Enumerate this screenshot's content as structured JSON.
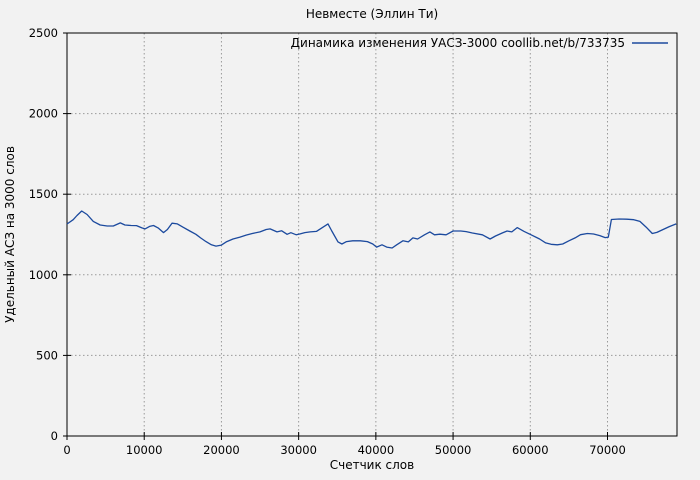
{
  "window": {
    "background": "#f2f2f2"
  },
  "chart_data": {
    "type": "line",
    "title": "Невместе (Эллин Ти)",
    "xlabel": "Счетчик слов",
    "ylabel": "Удельный АСЗ на 3000 слов",
    "legend_position": "top-right-inside",
    "grid": true,
    "xlim": [
      0,
      79000
    ],
    "ylim": [
      0,
      2500
    ],
    "xticks": [
      0,
      10000,
      20000,
      30000,
      40000,
      50000,
      60000,
      70000
    ],
    "yticks": [
      0,
      500,
      1000,
      1500,
      2000,
      2500
    ],
    "series": [
      {
        "name": "Динамика изменения УАСЗ-3000 coollib.net/b/733735",
        "color": "#1c4a9e",
        "points": [
          [
            0,
            1315
          ],
          [
            800,
            1342
          ],
          [
            1300,
            1368
          ],
          [
            1900,
            1396
          ],
          [
            2600,
            1374
          ],
          [
            3400,
            1331
          ],
          [
            4300,
            1309
          ],
          [
            5200,
            1303
          ],
          [
            6000,
            1303
          ],
          [
            6900,
            1322
          ],
          [
            7500,
            1309
          ],
          [
            8300,
            1306
          ],
          [
            9000,
            1305
          ],
          [
            9700,
            1291
          ],
          [
            10100,
            1285
          ],
          [
            10700,
            1300
          ],
          [
            11200,
            1306
          ],
          [
            11800,
            1291
          ],
          [
            12500,
            1262
          ],
          [
            13000,
            1281
          ],
          [
            13600,
            1320
          ],
          [
            14300,
            1316
          ],
          [
            15000,
            1296
          ],
          [
            15900,
            1272
          ],
          [
            16700,
            1251
          ],
          [
            17300,
            1229
          ],
          [
            18000,
            1206
          ],
          [
            18700,
            1186
          ],
          [
            19300,
            1178
          ],
          [
            20000,
            1184
          ],
          [
            20700,
            1206
          ],
          [
            21500,
            1222
          ],
          [
            22400,
            1234
          ],
          [
            23200,
            1246
          ],
          [
            24000,
            1256
          ],
          [
            25000,
            1266
          ],
          [
            25800,
            1281
          ],
          [
            26300,
            1285
          ],
          [
            27200,
            1266
          ],
          [
            27800,
            1273
          ],
          [
            28500,
            1251
          ],
          [
            29000,
            1261
          ],
          [
            29700,
            1248
          ],
          [
            30200,
            1254
          ],
          [
            30800,
            1262
          ],
          [
            31500,
            1266
          ],
          [
            32300,
            1269
          ],
          [
            33000,
            1291
          ],
          [
            33800,
            1316
          ],
          [
            34300,
            1272
          ],
          [
            35100,
            1204
          ],
          [
            35600,
            1191
          ],
          [
            36200,
            1206
          ],
          [
            37000,
            1211
          ],
          [
            38000,
            1211
          ],
          [
            38900,
            1206
          ],
          [
            39600,
            1191
          ],
          [
            40100,
            1172
          ],
          [
            40800,
            1186
          ],
          [
            41400,
            1172
          ],
          [
            42100,
            1166
          ],
          [
            42700,
            1186
          ],
          [
            43500,
            1211
          ],
          [
            44200,
            1204
          ],
          [
            44800,
            1229
          ],
          [
            45400,
            1222
          ],
          [
            46300,
            1248
          ],
          [
            47000,
            1266
          ],
          [
            47600,
            1248
          ],
          [
            48300,
            1252
          ],
          [
            49100,
            1248
          ],
          [
            50000,
            1272
          ],
          [
            51000,
            1272
          ],
          [
            51700,
            1268
          ],
          [
            52500,
            1259
          ],
          [
            53800,
            1248
          ],
          [
            54800,
            1222
          ],
          [
            55500,
            1241
          ],
          [
            56400,
            1260
          ],
          [
            57000,
            1272
          ],
          [
            57600,
            1266
          ],
          [
            58300,
            1293
          ],
          [
            59200,
            1269
          ],
          [
            60100,
            1248
          ],
          [
            61200,
            1222
          ],
          [
            62000,
            1198
          ],
          [
            62700,
            1189
          ],
          [
            63500,
            1186
          ],
          [
            64200,
            1191
          ],
          [
            65000,
            1211
          ],
          [
            65800,
            1229
          ],
          [
            66500,
            1249
          ],
          [
            67400,
            1256
          ],
          [
            68200,
            1253
          ],
          [
            69000,
            1243
          ],
          [
            69700,
            1231
          ],
          [
            70100,
            1233
          ],
          [
            70500,
            1343
          ],
          [
            71500,
            1346
          ],
          [
            72500,
            1345
          ],
          [
            73400,
            1342
          ],
          [
            74200,
            1331
          ],
          [
            75000,
            1296
          ],
          [
            75800,
            1256
          ],
          [
            76400,
            1263
          ],
          [
            77200,
            1281
          ],
          [
            78000,
            1299
          ],
          [
            78900,
            1316
          ]
        ]
      }
    ]
  },
  "style": {
    "frame_color": "#000000",
    "grid_color": "#9a9a9a",
    "text_color": "#000000",
    "line_color": "#1c4a9e"
  }
}
